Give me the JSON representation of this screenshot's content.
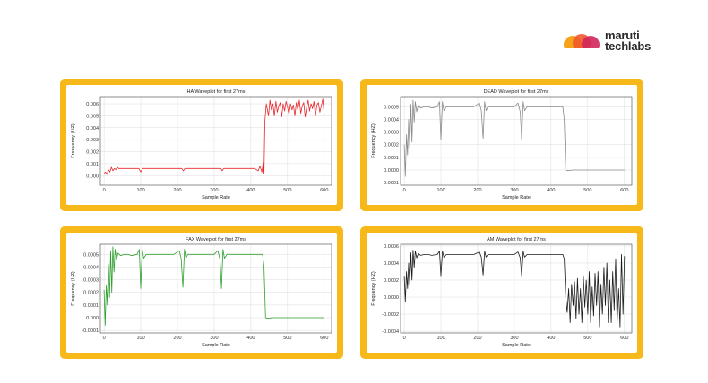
{
  "brand": {
    "line1": "maruti",
    "line2": "techlabs"
  },
  "chart_data": [
    {
      "type": "line",
      "title": "HA Waveplot for first 27ms",
      "xlabel": "Sample Rate",
      "ylabel": "Frequency (HZ)",
      "xlim": [
        -10,
        620
      ],
      "ylim": [
        -0.0008,
        0.0066
      ],
      "xticks": [
        0,
        100,
        200,
        300,
        400,
        500,
        600
      ],
      "yticks": [
        0.0,
        0.001,
        0.002,
        0.003,
        0.004,
        0.005,
        0.006
      ],
      "ytick_labels": [
        "0.000",
        "0.001",
        "0.002",
        "0.003",
        "0.004",
        "0.005",
        "0.006"
      ],
      "grid": true,
      "color": "#e8262a",
      "series": [
        {
          "x": [
            0,
            4,
            8,
            12,
            16,
            20,
            24,
            28,
            32,
            36,
            40,
            50,
            60,
            80,
            95,
            100,
            105,
            120,
            140,
            160,
            180,
            200,
            212,
            216,
            220,
            240,
            260,
            280,
            300,
            318,
            322,
            326,
            340,
            360,
            380,
            400,
            410,
            420,
            425,
            430,
            434,
            436,
            438,
            442,
            448,
            452,
            456,
            460,
            464,
            468,
            472,
            476,
            480,
            484,
            488,
            492,
            496,
            500,
            504,
            508,
            512,
            516,
            520,
            524,
            528,
            532,
            536,
            540,
            544,
            548,
            552,
            556,
            560,
            564,
            568,
            572,
            576,
            580,
            584,
            588,
            592,
            596,
            600
          ],
          "y": [
            0.0002,
            0.0003,
            0.0001,
            0.0005,
            0.0003,
            0.0007,
            0.0004,
            0.0006,
            0.0005,
            0.0007,
            0.0006,
            0.0006,
            0.0006,
            0.0006,
            0.0006,
            0.0003,
            0.0006,
            0.0006,
            0.0006,
            0.0006,
            0.0006,
            0.0006,
            0.0006,
            0.0004,
            0.0006,
            0.0006,
            0.0006,
            0.0006,
            0.0006,
            0.0006,
            0.0004,
            0.0006,
            0.0006,
            0.0006,
            0.0006,
            0.0006,
            0.0006,
            0.0004,
            0.0008,
            0.0003,
            0.0011,
            0.0002,
            0.0045,
            0.006,
            0.005,
            0.0063,
            0.0055,
            0.006,
            0.005,
            0.0062,
            0.0053,
            0.0058,
            0.0061,
            0.0049,
            0.006,
            0.0054,
            0.0062,
            0.0057,
            0.0051,
            0.006,
            0.0055,
            0.0059,
            0.005,
            0.0061,
            0.0055,
            0.0063,
            0.0052,
            0.0058,
            0.0061,
            0.0049,
            0.0057,
            0.0063,
            0.0054,
            0.006,
            0.0056,
            0.0062,
            0.005,
            0.0059,
            0.0061,
            0.0053,
            0.0058,
            0.0064,
            0.0051
          ]
        }
      ]
    },
    {
      "type": "line",
      "title": "DEAD Waveplot for first 27ms",
      "xlabel": "Sample Rate",
      "ylabel": "Frequency (HZ)",
      "xlim": [
        -10,
        620
      ],
      "ylim": [
        -0.00012,
        0.00058
      ],
      "xticks": [
        0,
        100,
        200,
        300,
        400,
        500,
        600
      ],
      "yticks": [
        -0.0001,
        0.0,
        0.0001,
        0.0002,
        0.0003,
        0.0004,
        0.0005
      ],
      "ytick_labels": [
        "-0.0001",
        "0.0000",
        "0.0001",
        "0.0002",
        "0.0003",
        "0.0004",
        "0.0005"
      ],
      "grid": true,
      "color": "#8a8a8a",
      "series": [
        {
          "x": [
            0,
            3,
            6,
            9,
            12,
            15,
            18,
            21,
            24,
            27,
            30,
            34,
            38,
            45,
            55,
            65,
            75,
            90,
            96,
            100,
            104,
            108,
            115,
            130,
            150,
            170,
            190,
            205,
            210,
            215,
            219,
            223,
            228,
            240,
            260,
            280,
            300,
            310,
            316,
            320,
            324,
            328,
            335,
            350,
            370,
            390,
            410,
            425,
            432,
            436,
            440,
            445,
            460,
            480,
            500,
            520,
            540,
            560,
            580,
            600
          ],
          "y": [
            0.0002,
            -5e-05,
            0.00028,
            0.00012,
            0.0004,
            0.00018,
            0.00052,
            0.00022,
            0.00055,
            0.00038,
            0.00054,
            0.00046,
            0.00051,
            0.00049,
            0.0005,
            0.0005,
            0.00049,
            0.0005,
            0.00054,
            0.00024,
            0.00054,
            0.00047,
            0.0005,
            0.0005,
            0.0005,
            0.0005,
            0.0005,
            0.00053,
            0.00047,
            0.00025,
            0.00054,
            0.00047,
            0.0005,
            0.0005,
            0.0005,
            0.0005,
            0.0005,
            0.00053,
            0.00046,
            0.00024,
            0.00054,
            0.00047,
            0.0005,
            0.0005,
            0.0005,
            0.0005,
            0.0005,
            0.0005,
            0.0005,
            0.0004,
            0.0,
            -5e-06,
            0.0,
            0.0,
            0.0,
            0.0,
            0.0,
            0.0,
            0.0,
            0.0
          ]
        }
      ]
    },
    {
      "type": "line",
      "title": "FAX Waveplot for first 27ms",
      "xlabel": "Sample Rate",
      "ylabel": "Frequency (HZ)",
      "xlim": [
        -10,
        620
      ],
      "ylim": [
        -0.00012,
        0.00058
      ],
      "xticks": [
        0,
        100,
        200,
        300,
        400,
        500,
        600
      ],
      "yticks": [
        -0.0001,
        0.0,
        0.0001,
        0.0002,
        0.0003,
        0.0004,
        0.0005
      ],
      "ytick_labels": [
        "-0.0001",
        "0.000",
        "0.0001",
        "0.0002",
        "0.0003",
        "0.0004",
        "0.0005"
      ],
      "grid": true,
      "color": "#2f9e2f",
      "series": [
        {
          "x": [
            0,
            3,
            6,
            9,
            12,
            15,
            18,
            21,
            24,
            27,
            30,
            34,
            38,
            45,
            55,
            65,
            75,
            90,
            96,
            100,
            104,
            108,
            115,
            130,
            150,
            170,
            190,
            205,
            210,
            215,
            219,
            223,
            228,
            240,
            260,
            280,
            300,
            310,
            316,
            320,
            324,
            328,
            335,
            350,
            370,
            390,
            410,
            425,
            432,
            436,
            440,
            445,
            460,
            480,
            500,
            520,
            540,
            560,
            580,
            600
          ],
          "y": [
            0.00022,
            -6e-05,
            0.00026,
            0.0001,
            0.00042,
            0.00016,
            0.00053,
            0.0002,
            0.00056,
            0.00036,
            0.00054,
            0.00046,
            0.00051,
            0.00049,
            0.0005,
            0.0005,
            0.00049,
            0.0005,
            0.00054,
            0.00023,
            0.00054,
            0.00047,
            0.0005,
            0.0005,
            0.0005,
            0.0005,
            0.0005,
            0.00053,
            0.00047,
            0.00024,
            0.00054,
            0.00047,
            0.0005,
            0.0005,
            0.0005,
            0.0005,
            0.0005,
            0.00053,
            0.00046,
            0.00023,
            0.00054,
            0.00047,
            0.0005,
            0.0005,
            0.0005,
            0.0005,
            0.0005,
            0.0005,
            0.0005,
            0.0004,
            0.0,
            -5e-06,
            0.0,
            0.0,
            0.0,
            0.0,
            0.0,
            0.0,
            0.0,
            0.0
          ]
        }
      ]
    },
    {
      "type": "line",
      "title": "AM Waveplot for first 27ms",
      "xlabel": "Sample Rate",
      "ylabel": "Frequency (HZ)",
      "xlim": [
        -10,
        620
      ],
      "ylim": [
        -0.00042,
        0.00062
      ],
      "xticks": [
        0,
        100,
        200,
        300,
        400,
        500,
        600
      ],
      "yticks": [
        -0.0004,
        -0.0002,
        0.0,
        0.0002,
        0.0004,
        0.0006
      ],
      "ytick_labels": [
        "-0.0004",
        "-0.0002",
        "0.0000",
        "0.0002",
        "0.0004",
        "0.0006"
      ],
      "grid": true,
      "color": "#1a1a1a",
      "series": [
        {
          "x": [
            0,
            3,
            6,
            9,
            12,
            15,
            18,
            21,
            24,
            27,
            30,
            34,
            38,
            45,
            55,
            65,
            75,
            90,
            96,
            100,
            104,
            108,
            115,
            130,
            150,
            170,
            190,
            205,
            210,
            215,
            219,
            223,
            228,
            240,
            260,
            280,
            300,
            310,
            316,
            320,
            324,
            328,
            335,
            350,
            370,
            390,
            410,
            425,
            432,
            436,
            440,
            444,
            448,
            452,
            456,
            460,
            464,
            468,
            472,
            476,
            480,
            484,
            488,
            492,
            496,
            500,
            504,
            508,
            512,
            516,
            520,
            524,
            528,
            532,
            536,
            540,
            544,
            548,
            552,
            556,
            560,
            564,
            568,
            572,
            576,
            580,
            584,
            588,
            592,
            596,
            600
          ],
          "y": [
            0.00025,
            -5e-05,
            0.0003,
            0.0001,
            0.0004,
            0.00015,
            0.00052,
            0.0002,
            0.00055,
            0.00035,
            0.00054,
            0.00046,
            0.00051,
            0.00049,
            0.0005,
            0.0005,
            0.00049,
            0.0005,
            0.00054,
            0.00025,
            0.00054,
            0.00047,
            0.0005,
            0.0005,
            0.0005,
            0.0005,
            0.0005,
            0.00053,
            0.00047,
            0.00026,
            0.00054,
            0.00047,
            0.0005,
            0.0005,
            0.0005,
            0.0005,
            0.0005,
            0.00053,
            0.00046,
            0.00025,
            0.00054,
            0.00047,
            0.0005,
            0.0005,
            0.0005,
            0.0005,
            0.0005,
            0.0005,
            0.0005,
            0.00045,
            0.0,
            -0.00018,
            0.0001,
            -0.0003,
            0.00015,
            -0.0001,
            0.00018,
            -0.00025,
            0.00022,
            -0.0002,
            0.0001,
            -0.0003,
            0.00025,
            -0.00012,
            0.0002,
            -0.0002,
            0.0003,
            -0.0003,
            0.00012,
            -0.00022,
            0.00028,
            -0.0001,
            0.0003,
            -0.00035,
            0.00015,
            -0.0002,
            0.00035,
            -0.0001,
            0.0004,
            -0.0003,
            0.0002,
            -0.0003,
            0.0003,
            -0.00015,
            0.00045,
            -0.0003,
            0.0001,
            -0.00035,
            0.0005,
            -0.0002,
            0.00048
          ]
        }
      ]
    }
  ]
}
